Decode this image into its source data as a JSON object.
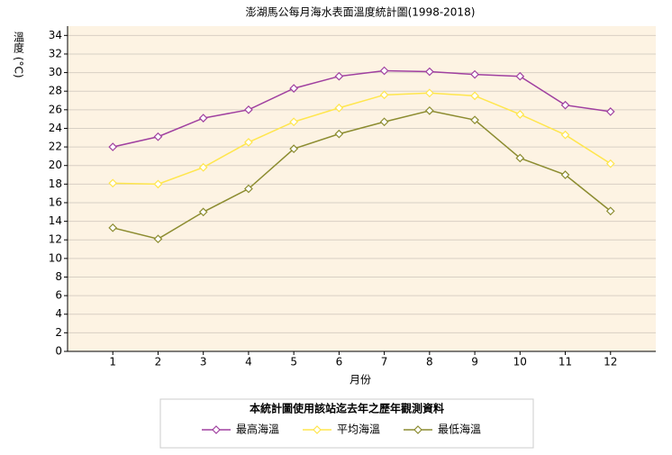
{
  "chart_data": {
    "type": "line",
    "title": "澎湖馬公每月海水表面溫度統計圖(1998-2018)",
    "x_label": "月份",
    "y_label": "溫度 (°C)",
    "legend_title": "本統計圖使用該站迄去年之歷年觀測資料",
    "x": [
      1,
      2,
      3,
      4,
      5,
      6,
      7,
      8,
      9,
      10,
      11,
      12
    ],
    "series": [
      {
        "name": "最高海溫",
        "color": "#a040a0",
        "values": [
          22,
          23.1,
          25.1,
          26,
          28.3,
          29.6,
          30.2,
          30.1,
          29.8,
          29.6,
          26.5,
          25.8
        ]
      },
      {
        "name": "平均海溫",
        "color": "#ffe64d",
        "values": [
          18.1,
          18,
          19.8,
          22.5,
          24.7,
          26.2,
          27.6,
          27.8,
          27.5,
          25.5,
          23.3,
          20.2
        ]
      },
      {
        "name": "最低海溫",
        "color": "#8c8c30",
        "values": [
          13.3,
          12.1,
          15,
          17.5,
          21.8,
          23.4,
          24.7,
          25.9,
          24.9,
          20.8,
          19,
          15.1
        ]
      }
    ],
    "xlim": [
      0,
      13
    ],
    "xticks": [
      1,
      2,
      3,
      4,
      5,
      6,
      7,
      8,
      9,
      10,
      11,
      12
    ],
    "ylim": [
      0,
      35
    ],
    "yticks": [
      0,
      2,
      4,
      6,
      8,
      10,
      12,
      14,
      16,
      18,
      20,
      22,
      24,
      26,
      28,
      30,
      32,
      34
    ],
    "grid": true
  }
}
